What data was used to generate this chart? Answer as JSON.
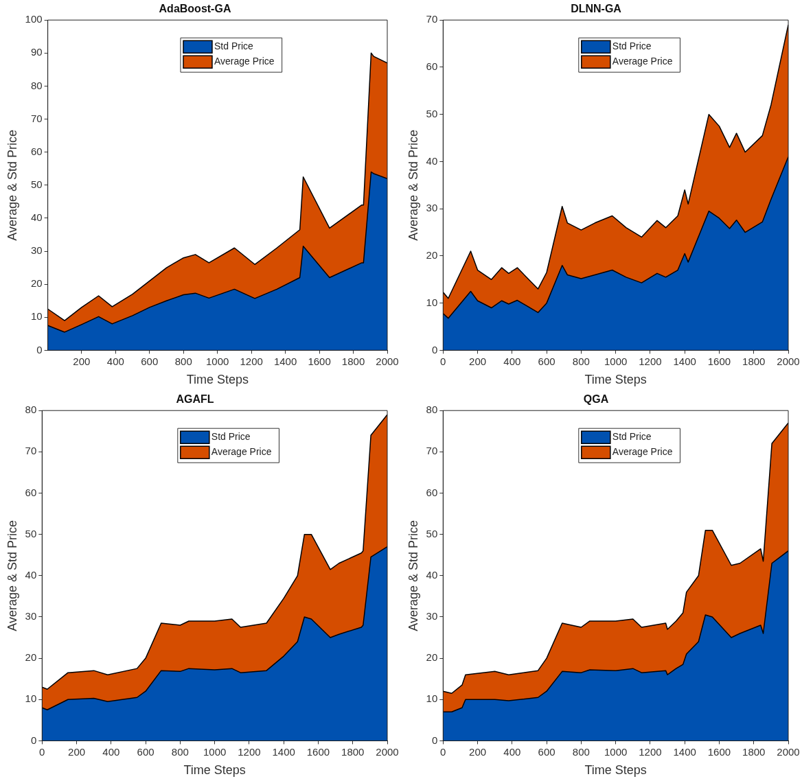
{
  "chart_data": [
    {
      "type": "area",
      "title": "AdaBoost-GA",
      "xlabel": "Time Steps",
      "ylabel": "Average & Std Price",
      "stacked": true,
      "legend": "top",
      "x": [
        1,
        100,
        200,
        300,
        380,
        500,
        600,
        700,
        800,
        870,
        950,
        1100,
        1220,
        1350,
        1485,
        1505,
        1660,
        1850,
        1860,
        1905,
        1920,
        2000
      ],
      "series": [
        {
          "name": "Std Price",
          "color": "#0051b0",
          "values": [
            7.5,
            5.5,
            7.8,
            10.2,
            8,
            10.5,
            13,
            15,
            16.8,
            17.3,
            15.8,
            18.5,
            15.7,
            18.5,
            22,
            31.5,
            22,
            26.5,
            26.5,
            54,
            53.5,
            52
          ]
        },
        {
          "name": "Average Price",
          "color": "#d54d00",
          "values": [
            5,
            3.5,
            5.2,
            6.3,
            5.2,
            6.5,
            8,
            10,
            11.2,
            11.7,
            10.7,
            12.5,
            10.3,
            12.5,
            14.5,
            21,
            15,
            17.5,
            17.5,
            36,
            35.5,
            35
          ]
        }
      ],
      "xlim": [
        1,
        2000
      ],
      "xticks": [
        200,
        400,
        600,
        800,
        1000,
        1200,
        1400,
        1600,
        1800,
        2000
      ],
      "ylim": [
        0,
        100
      ],
      "yticks": [
        0,
        10,
        20,
        30,
        40,
        50,
        60,
        70,
        80,
        90,
        100
      ]
    },
    {
      "type": "area",
      "title": "DLNN-GA",
      "xlabel": "Time Steps",
      "ylabel": "Average & Std Price",
      "stacked": true,
      "legend": "top",
      "x": [
        0,
        30,
        160,
        200,
        280,
        340,
        380,
        430,
        550,
        600,
        690,
        720,
        800,
        880,
        980,
        1060,
        1150,
        1240,
        1290,
        1360,
        1400,
        1420,
        1540,
        1600,
        1660,
        1700,
        1750,
        1850,
        1900,
        2000
      ],
      "series": [
        {
          "name": "Std Price",
          "color": "#0051b0",
          "values": [
            7.8,
            6.8,
            12.5,
            10.5,
            9,
            10.5,
            9.8,
            10.6,
            8,
            10,
            18,
            16,
            15.2,
            16,
            17,
            15.5,
            14.3,
            16.3,
            15.5,
            17,
            20.5,
            18.7,
            29.5,
            28,
            25.8,
            27.6,
            25,
            27.2,
            32,
            41
          ]
        },
        {
          "name": "Average Price",
          "color": "#d54d00",
          "values": [
            4.5,
            4.2,
            8.5,
            6.5,
            6,
            7,
            6.5,
            6.9,
            5,
            6.5,
            12.5,
            11,
            10.3,
            11,
            11.5,
            10.5,
            9.7,
            11.2,
            10.5,
            11.5,
            13.5,
            12.3,
            20.5,
            19.5,
            17.2,
            18.4,
            17,
            18.3,
            20,
            28
          ]
        }
      ],
      "xlim": [
        0,
        2000
      ],
      "xticks": [
        0,
        200,
        400,
        600,
        800,
        1000,
        1200,
        1400,
        1600,
        1800,
        2000
      ],
      "ylim": [
        0,
        70
      ],
      "yticks": [
        0,
        10,
        20,
        30,
        40,
        50,
        60,
        70
      ]
    },
    {
      "type": "area",
      "title": "AGAFL",
      "xlabel": "Time Steps",
      "ylabel": "Average & Std Price",
      "stacked": true,
      "legend": "top",
      "x": [
        0,
        30,
        150,
        300,
        380,
        550,
        600,
        690,
        800,
        850,
        1000,
        1100,
        1150,
        1300,
        1400,
        1480,
        1520,
        1560,
        1670,
        1720,
        1850,
        1860,
        1905,
        2000
      ],
      "series": [
        {
          "name": "Std Price",
          "color": "#0051b0",
          "values": [
            8,
            7.5,
            10,
            10.3,
            9.5,
            10.5,
            12,
            17,
            16.8,
            17.5,
            17.2,
            17.5,
            16.5,
            17,
            20.5,
            24,
            30,
            29.5,
            25,
            25.8,
            27.5,
            28,
            44.5,
            47
          ]
        },
        {
          "name": "Average Price",
          "color": "#d54d00",
          "values": [
            5,
            5,
            6.5,
            6.7,
            6.5,
            7,
            8,
            11.5,
            11.2,
            11.5,
            11.8,
            12,
            11,
            11.5,
            14,
            16,
            20,
            20.5,
            16.5,
            17.2,
            18,
            18,
            29.5,
            32
          ]
        }
      ],
      "xlim": [
        0,
        2000
      ],
      "xticks": [
        0,
        200,
        400,
        600,
        800,
        1000,
        1200,
        1400,
        1600,
        1800,
        2000
      ],
      "ylim": [
        0,
        80
      ],
      "yticks": [
        0,
        10,
        20,
        30,
        40,
        50,
        60,
        70,
        80
      ]
    },
    {
      "type": "area",
      "title": "QGA",
      "xlabel": "Time Steps",
      "ylabel": "Average & Std Price",
      "stacked": true,
      "legend": "top",
      "x": [
        0,
        50,
        110,
        130,
        300,
        380,
        550,
        600,
        690,
        800,
        850,
        1000,
        1100,
        1150,
        1290,
        1300,
        1350,
        1390,
        1410,
        1480,
        1520,
        1560,
        1670,
        1720,
        1840,
        1855,
        1905,
        2000
      ],
      "series": [
        {
          "name": "Std Price",
          "color": "#0051b0",
          "values": [
            7,
            7,
            8,
            10,
            10,
            9.7,
            10.5,
            12,
            16.8,
            16.5,
            17.2,
            17,
            17.5,
            16.5,
            17,
            16,
            17.5,
            18.5,
            21,
            24,
            30.5,
            30,
            25,
            26,
            28,
            26,
            43,
            46
          ]
        },
        {
          "name": "Average Price",
          "color": "#d54d00",
          "values": [
            5,
            4.5,
            5.5,
            6,
            6.8,
            6.3,
            6.5,
            8,
            11.7,
            11,
            11.8,
            12,
            12,
            11,
            11.5,
            11,
            11.5,
            12.5,
            15,
            16,
            20.5,
            21,
            17.5,
            17,
            18.5,
            17.5,
            29,
            31
          ]
        }
      ],
      "xlim": [
        0,
        2000
      ],
      "xticks": [
        0,
        200,
        400,
        600,
        800,
        1000,
        1200,
        1400,
        1600,
        1800,
        2000
      ],
      "ylim": [
        0,
        80
      ],
      "yticks": [
        0,
        10,
        20,
        30,
        40,
        50,
        60,
        70,
        80
      ]
    }
  ]
}
